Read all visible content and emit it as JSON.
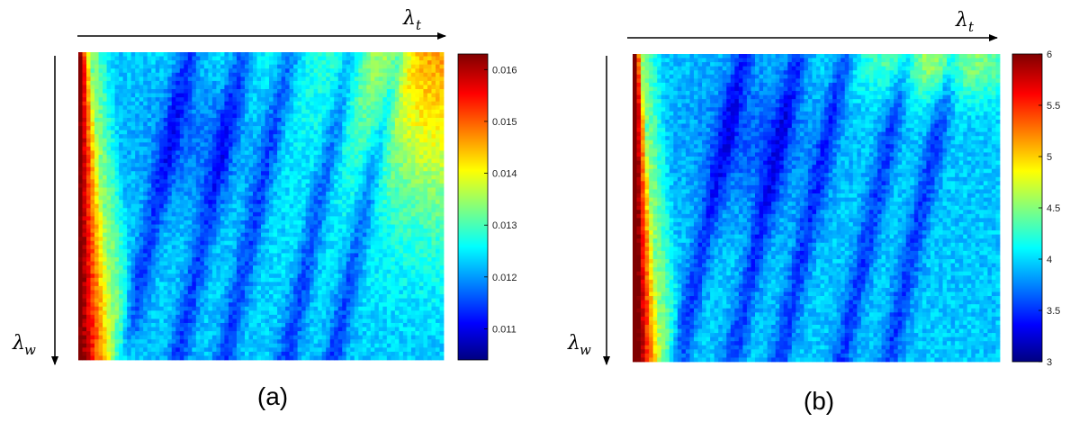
{
  "chart_data": [
    {
      "type": "heatmap",
      "caption": "(a)",
      "xlabel": "λ",
      "xlabel_sub": "t",
      "ylabel": "λ",
      "ylabel_sub": "w",
      "colorbar": {
        "colormap": "jet",
        "range": [
          0.0104,
          0.0163
        ],
        "ticks": [
          "0.016",
          "0.015",
          "0.014",
          "0.013",
          "0.012",
          "0.011"
        ],
        "tick_values": [
          0.016,
          0.015,
          0.014,
          0.013,
          0.012,
          0.011
        ]
      }
    },
    {
      "type": "heatmap",
      "caption": "(b)",
      "xlabel": "λ",
      "xlabel_sub": "t",
      "ylabel": "λ",
      "ylabel_sub": "w",
      "colorbar": {
        "colormap": "jet",
        "range": [
          3,
          6
        ],
        "ticks": [
          "6",
          "5.5",
          "5",
          "4.5",
          "4",
          "3.5",
          "3"
        ],
        "tick_values": [
          6,
          5.5,
          5,
          4.5,
          4,
          3.5,
          3
        ]
      }
    }
  ],
  "colors": {
    "jet_stops": [
      "#000080",
      "#0000ff",
      "#00ffff",
      "#ffff00",
      "#ff0000",
      "#800000"
    ]
  }
}
